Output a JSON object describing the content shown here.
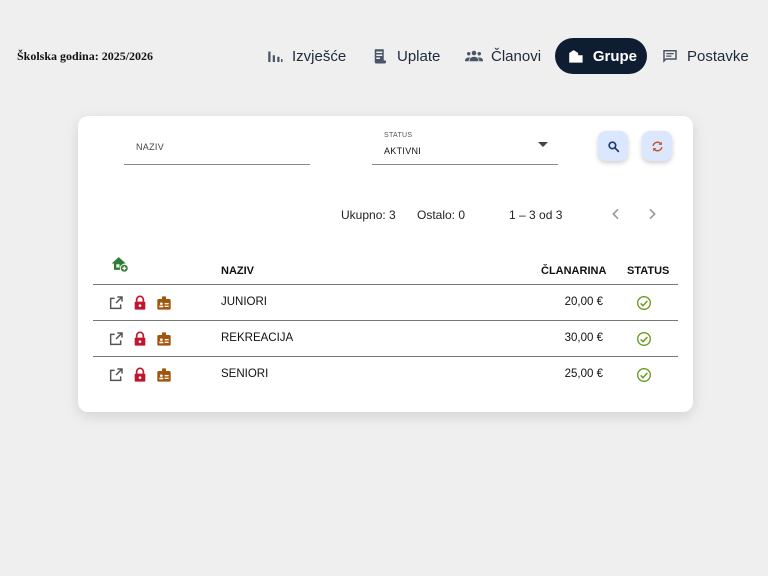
{
  "header": {
    "school_year": "Školska godina: 2025/2026",
    "nav": [
      {
        "label": "Izvješće",
        "icon": "bar-chart-icon",
        "active": false
      },
      {
        "label": "Uplate",
        "icon": "receipt-icon",
        "active": false
      },
      {
        "label": "Članovi",
        "icon": "people-icon",
        "active": false
      },
      {
        "label": "Grupe",
        "icon": "building-icon",
        "active": true
      },
      {
        "label": "Postavke",
        "icon": "settings-chat-icon",
        "active": false
      }
    ]
  },
  "filters": {
    "name_placeholder": "NAZIV",
    "status_label": "STATUS",
    "status_value": "AKTIVNI"
  },
  "summary": {
    "total": "Ukupno: 3",
    "remaining": "Ostalo: 0",
    "range": "1 – 3 od 3"
  },
  "table": {
    "headers": {
      "name": "NAZIV",
      "fee": "ČLANARINA",
      "status": "STATUS"
    },
    "rows": [
      {
        "name": "JUNIORI",
        "fee": "20,00 €"
      },
      {
        "name": "REKREACIJA",
        "fee": "30,00 €"
      },
      {
        "name": "SENIORI",
        "fee": "25,00 €"
      }
    ]
  },
  "colors": {
    "nav_active_bg": "#0f1d33",
    "button_bg": "#dbe6ff",
    "lock": "#c0152f",
    "badge": "#a0560b",
    "status_ok": "#6a9a1f",
    "add_group": "#2e7d32"
  }
}
